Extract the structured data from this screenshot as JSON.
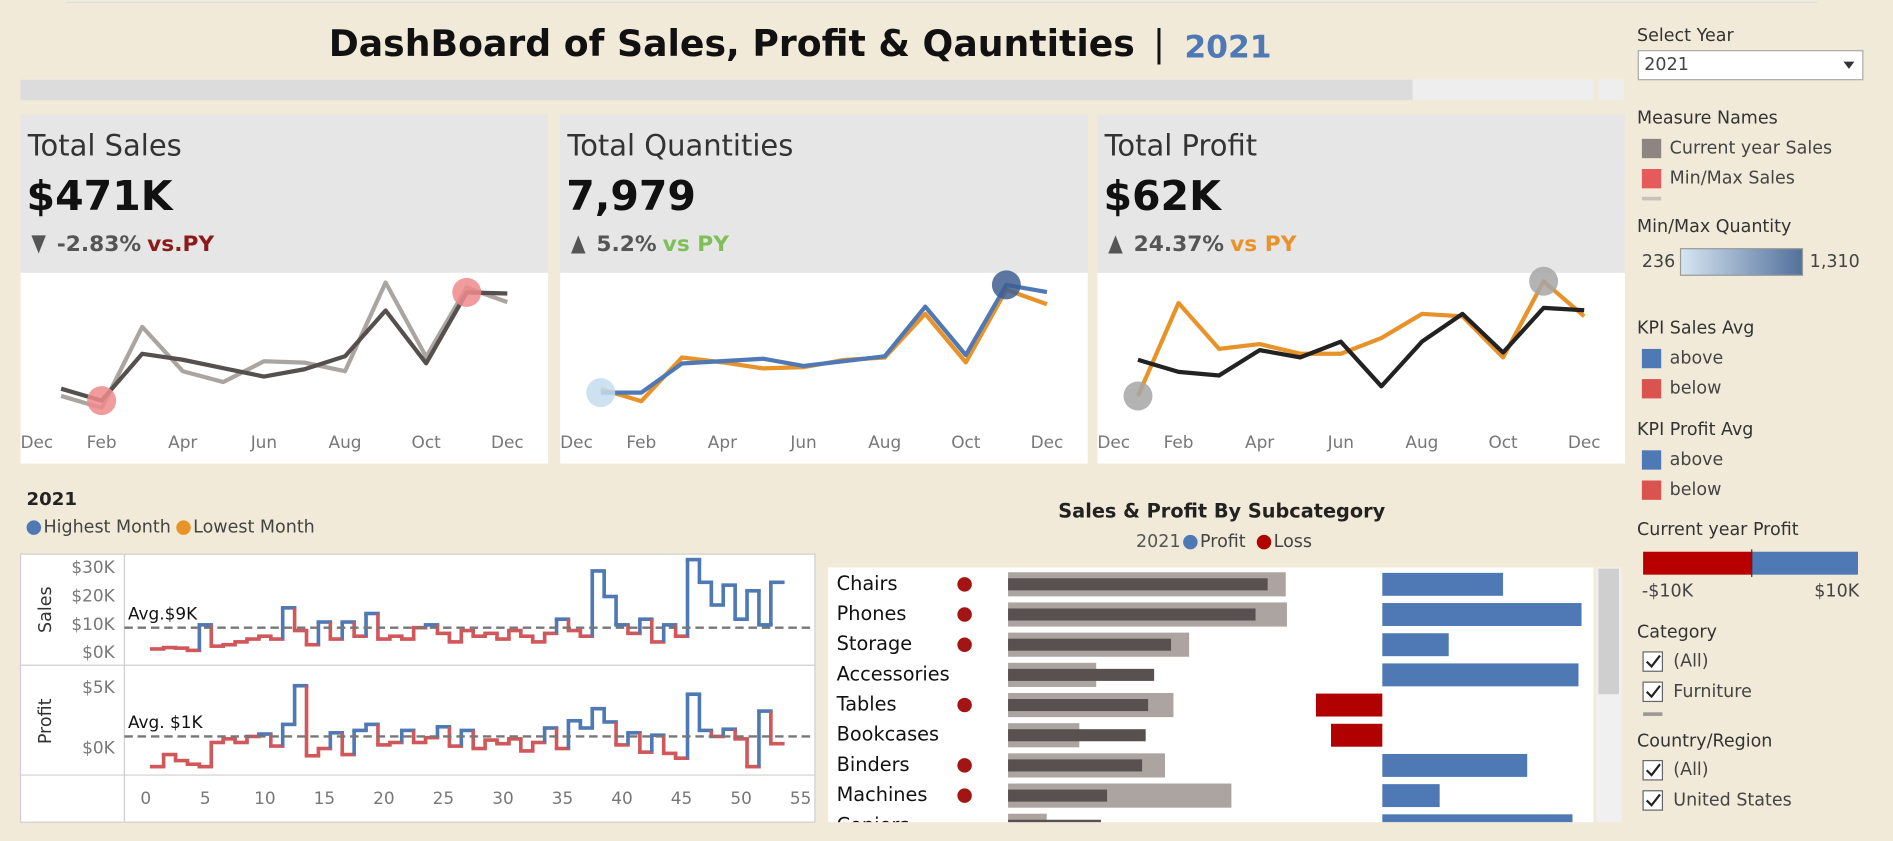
{
  "header": {
    "title": "DashBoard of Sales, Profit & Qauntities",
    "separator": "|",
    "year": "2021"
  },
  "kpis": [
    {
      "title": "Total Sales",
      "value": "$471K",
      "change": "-2.83%",
      "comparison": "vs.PY",
      "trend": "down",
      "accent_color": "#8b1a1a"
    },
    {
      "title": "Total Quantities",
      "value": "7,979",
      "change": "5.2%",
      "comparison": "vs PY",
      "trend": "up",
      "accent_color": "#7fbf5a"
    },
    {
      "title": "Total Profit",
      "value": "$62K",
      "change": "24.37%",
      "comparison": "vs PY",
      "trend": "up",
      "accent_color": "#e8922a"
    }
  ],
  "chart_data": [
    {
      "type": "line",
      "categories": [
        "Dec",
        null,
        "Feb",
        null,
        "Apr",
        null,
        "Jun",
        null,
        "Aug",
        null,
        "Oct",
        null,
        "Dec"
      ],
      "series": [
        {
          "color": "#55504e",
          "values": [
            null,
            19800,
            14400,
            35600,
            32900,
            29100,
            25300,
            28600,
            34500,
            55200,
            31300,
            63400,
            62900
          ]
        },
        {
          "color": "#aba5a2",
          "values": [
            null,
            16500,
            11100,
            47800,
            27700,
            22800,
            32200,
            31600,
            27700,
            67900,
            34200,
            65600,
            59000
          ]
        }
      ],
      "ylim": [
        5000,
        75000
      ],
      "highlight": {
        "series": 0,
        "colors": [
          "#ee8a8c",
          "#ee8a8c"
        ]
      }
    },
    {
      "type": "line",
      "categories": [
        "Dec",
        null,
        "Feb",
        null,
        "Apr",
        null,
        "Jun",
        null,
        "Aug",
        null,
        "Oct",
        null,
        "Dec"
      ],
      "series": [
        {
          "color": "#4e79b5",
          "values": [
            null,
            236,
            236,
            526,
            550,
            574,
            502,
            550,
            598,
            1093,
            610,
            1310,
            1238
          ]
        },
        {
          "color": "#e8922a",
          "values": [
            null,
            272,
            151,
            586,
            538,
            478,
            490,
            562,
            586,
            1021,
            538,
            1262,
            1117
          ]
        }
      ],
      "ylim": [
        -50,
        1490
      ],
      "highlight": {
        "series": 0,
        "colors": [
          "#c5dcee",
          "#3e5f90"
        ]
      }
    },
    {
      "type": "line",
      "categories": [
        "Dec",
        null,
        "Feb",
        null,
        "Apr",
        null,
        "Jun",
        null,
        "Aug",
        null,
        "Oct",
        null,
        "Dec"
      ],
      "series": [
        {
          "color": "#222222",
          "values": [
            null,
            240,
            -960,
            -1320,
            1200,
            480,
            2040,
            -2400,
            2040,
            4800,
            960,
            5400,
            5160
          ]
        },
        {
          "color": "#e8922a",
          "values": [
            null,
            -3360,
            5880,
            1320,
            1800,
            840,
            840,
            2400,
            4800,
            4560,
            480,
            8040,
            4560
          ]
        }
      ],
      "ylim": [
        -5880,
        9480
      ],
      "highlight": {
        "series": 1,
        "colors": [
          "#a6a6a6",
          "#a6a6a6"
        ]
      }
    },
    {
      "type": "step",
      "title": "2021",
      "legend": [
        {
          "name": "Highest Month",
          "color": "#4e79b5"
        },
        {
          "name": "Lowest Month",
          "color": "#e8922a"
        }
      ],
      "x": [
        1,
        2,
        3,
        4,
        5,
        6,
        7,
        8,
        9,
        10,
        11,
        12,
        13,
        14,
        15,
        16,
        17,
        18,
        19,
        20,
        21,
        22,
        23,
        24,
        25,
        26,
        27,
        28,
        29,
        30,
        31,
        32,
        33,
        34,
        35,
        36,
        37,
        38,
        39,
        40,
        41,
        42,
        43,
        44,
        45,
        46,
        47,
        48,
        49,
        50,
        51,
        52,
        53
      ],
      "xlim": [
        -1.8,
        56.2
      ],
      "xticks": [
        0,
        5,
        10,
        15,
        20,
        25,
        30,
        35,
        40,
        45,
        50,
        55
      ],
      "above_color": "#4e79b5",
      "below_color": "#d0575a",
      "panels": [
        {
          "label": "Sales",
          "values": [
            1500,
            2000,
            1800,
            1000,
            10000,
            2500,
            3000,
            4000,
            5000,
            6000,
            5000,
            16000,
            8000,
            3000,
            11000,
            5000,
            11000,
            6000,
            14000,
            5000,
            6000,
            5000,
            9000,
            10000,
            7000,
            4000,
            8000,
            6000,
            7000,
            5000,
            8000,
            6000,
            4000,
            7000,
            12000,
            8000,
            6000,
            29000,
            20000,
            10000,
            7000,
            12000,
            4000,
            10000,
            6000,
            33000,
            25000,
            17000,
            24000,
            12000,
            22000,
            10000,
            25000
          ],
          "ylim": [
            -3800,
            34500
          ],
          "yticks": [
            {
              "value": 0,
              "label": "$0K"
            },
            {
              "value": 10000,
              "label": "$10K"
            },
            {
              "value": 20000,
              "label": "$20K"
            },
            {
              "value": 30000,
              "label": "$30K"
            }
          ],
          "average": {
            "value": 9000,
            "label": "Avg.$9K"
          }
        },
        {
          "label": "Profit",
          "values": [
            -1500,
            -500,
            -1000,
            -1300,
            -1500,
            500,
            800,
            500,
            1000,
            1200,
            200,
            2000,
            5200,
            -600,
            0,
            1300,
            -500,
            1500,
            2000,
            300,
            500,
            1500,
            500,
            900,
            1800,
            200,
            1500,
            0,
            700,
            400,
            800,
            -200,
            500,
            1700,
            0,
            2300,
            1700,
            3300,
            2200,
            300,
            1300,
            -300,
            1100,
            -400,
            -800,
            4500,
            1500,
            1000,
            1600,
            800,
            -1500,
            3100,
            400
          ],
          "ylim": [
            -2200,
            6700
          ],
          "yticks": [
            {
              "value": 0,
              "label": "$0K"
            },
            {
              "value": 5000,
              "label": "$5K"
            }
          ],
          "average": {
            "value": 1000,
            "label": "Avg. $1K"
          }
        }
      ]
    },
    {
      "type": "bar",
      "title": "Sales & Profit By Subcategory",
      "legend_label": "2021",
      "legend": [
        {
          "name": "Profit",
          "color": "#4e79b5"
        },
        {
          "name": "Loss",
          "color": "#b00000"
        }
      ],
      "categories": [
        "Chairs",
        "Phones",
        "Storage",
        "Accessories",
        "Tables",
        "Bookcases",
        "Binders",
        "Machines",
        "Copiers"
      ],
      "series": [
        {
          "color": "#aca4a0",
          "values": [
            92000,
            92400,
            60000,
            29200,
            54800,
            23600,
            52000,
            74000,
            12800
          ]
        },
        {
          "color": "#58514f",
          "values": [
            86000,
            82000,
            54000,
            48400,
            46400,
            45600,
            44400,
            32800,
            30800
          ]
        }
      ],
      "profit": [
        8000,
        13200,
        4400,
        13000,
        -4400,
        -3400,
        9600,
        3800,
        12600
      ],
      "decline_color": "#a31515",
      "xlim": [
        0,
        120000
      ],
      "x2lim": [
        -4800,
        13840
      ]
    }
  ],
  "sidebar": {
    "year_filter": {
      "title": "Select Year",
      "value": "2021"
    },
    "measure_names": {
      "title": "Measure Names",
      "items": [
        {
          "label": "Current year Sales",
          "color": "#8c8582"
        },
        {
          "label": "Min/Max Sales",
          "color": "#e55a5a"
        }
      ]
    },
    "quantity_legend": {
      "title": "Min/Max Quantity",
      "min": "236",
      "max": "1,310",
      "colors": [
        "#d6e6f2",
        "#52709b"
      ]
    },
    "kpi_sales": {
      "title": "KPI Sales Avg",
      "items": [
        {
          "label": "above",
          "color": "#4e79b5"
        },
        {
          "label": "below",
          "color": "#d9534f"
        }
      ]
    },
    "kpi_profit": {
      "title": "KPI Profit Avg",
      "items": [
        {
          "label": "above",
          "color": "#4e79b5"
        },
        {
          "label": "below",
          "color": "#d9534f"
        }
      ]
    },
    "profit_legend": {
      "title": "Current year Profit",
      "min": "-$10K",
      "max": "$10K",
      "colors": [
        "#b80000",
        "#4e79b5"
      ]
    },
    "category_filter": {
      "title": "Category",
      "options": [
        "(All)",
        "Furniture"
      ]
    },
    "country_filter": {
      "title": "Country/Region",
      "options": [
        "(All)",
        "United States"
      ]
    }
  }
}
